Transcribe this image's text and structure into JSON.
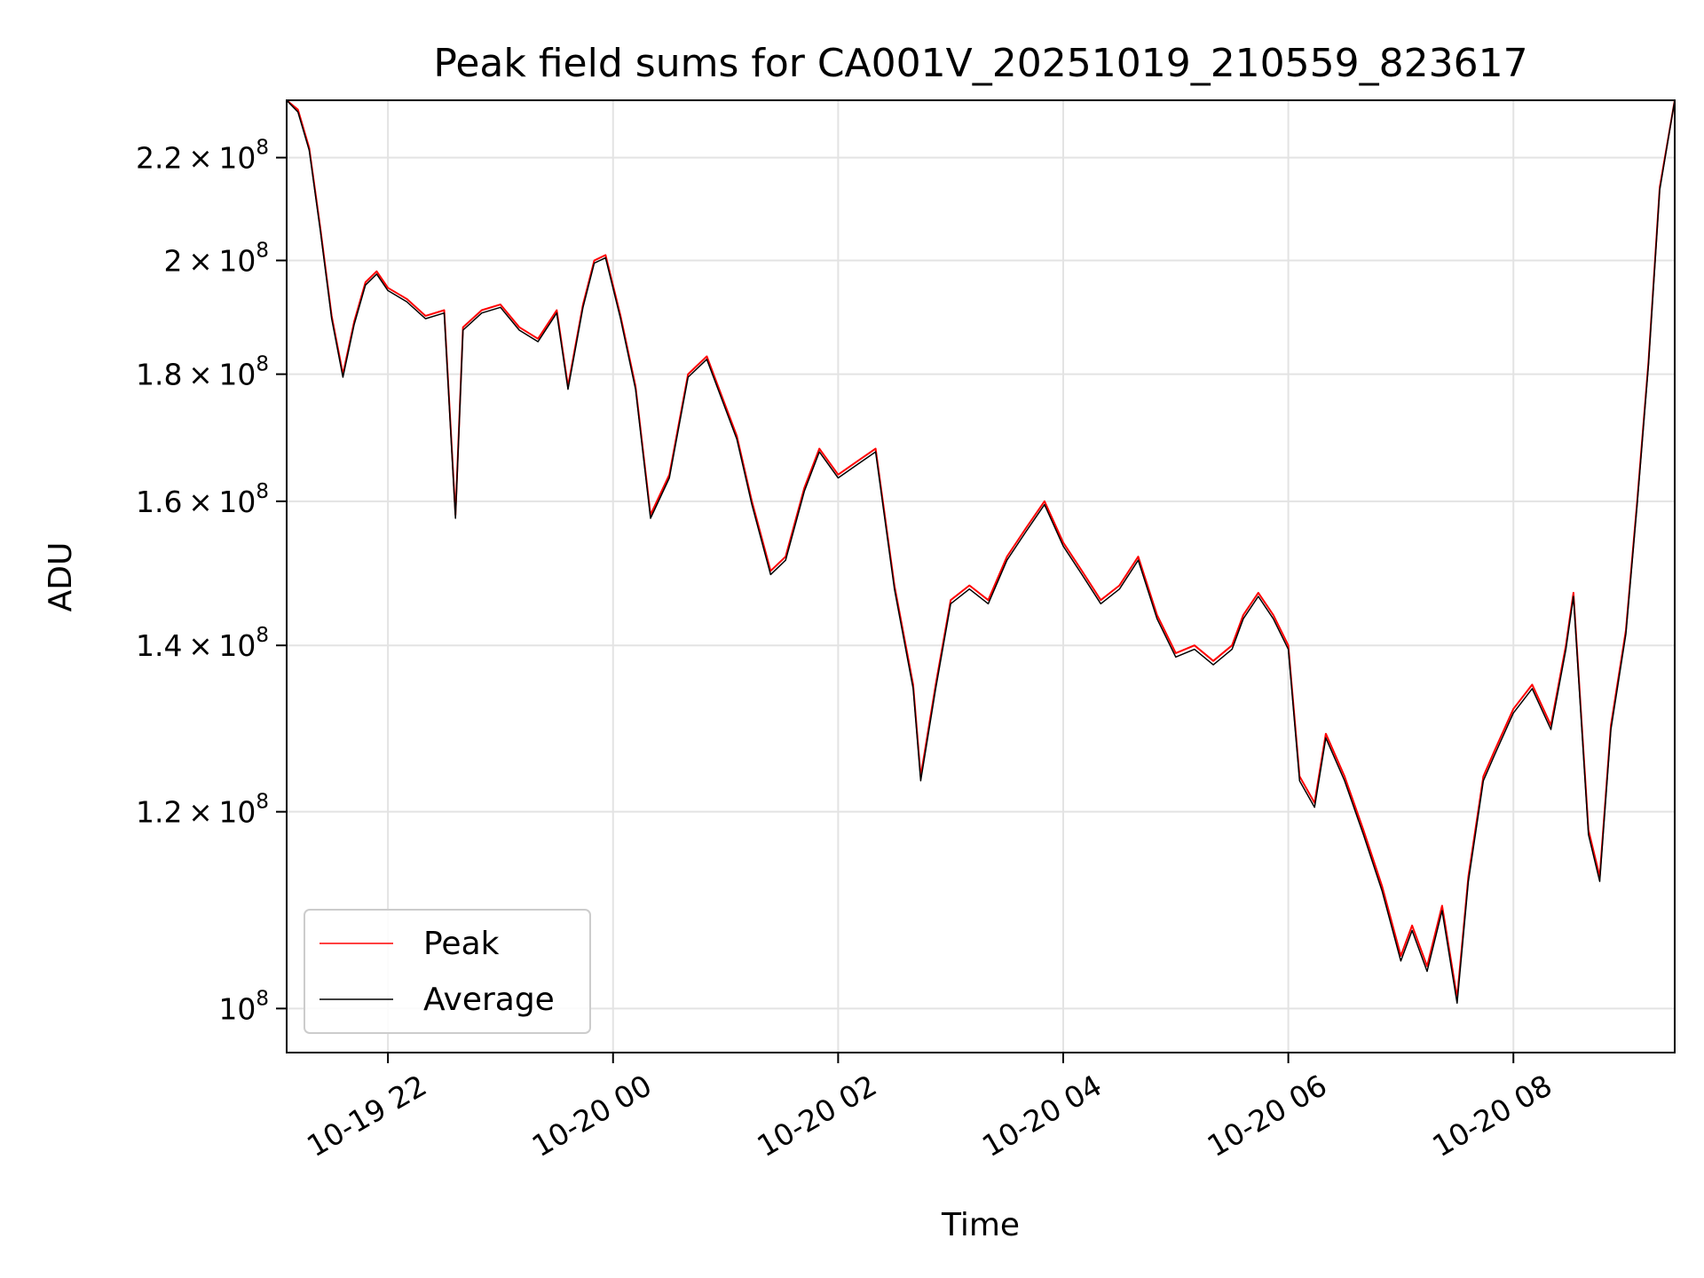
{
  "chart_data": {
    "type": "line",
    "title": "Peak field sums for CA001V_20251019_210559_823617",
    "xlabel": "Time",
    "ylabel": "ADU",
    "x_axis_type": "datetime",
    "y_scale": "log",
    "xlim": [
      "2025-10-19T21:06",
      "2025-10-20T09:26"
    ],
    "ylim": [
      96000000,
      232000000
    ],
    "grid": true,
    "legend_position": "lower-left",
    "x_ticks": [
      {
        "label": "10-19 22",
        "value": "2025-10-19T22:00"
      },
      {
        "label": "10-20 00",
        "value": "2025-10-20T00:00"
      },
      {
        "label": "10-20 02",
        "value": "2025-10-20T02:00"
      },
      {
        "label": "10-20 04",
        "value": "2025-10-20T04:00"
      },
      {
        "label": "10-20 06",
        "value": "2025-10-20T06:00"
      },
      {
        "label": "10-20 08",
        "value": "2025-10-20T08:00"
      }
    ],
    "y_ticks": [
      {
        "mantissa": "2.2",
        "exp": "8",
        "value": 220000000
      },
      {
        "mantissa": "2",
        "exp": "8",
        "value": 200000000
      },
      {
        "mantissa": "1.8",
        "exp": "8",
        "value": 180000000
      },
      {
        "mantissa": "1.6",
        "exp": "8",
        "value": 160000000
      },
      {
        "mantissa": "1.4",
        "exp": "8",
        "value": 140000000
      },
      {
        "mantissa": "1.2",
        "exp": "8",
        "value": 120000000
      },
      {
        "mantissa": "",
        "exp": "8",
        "value": 100000000
      }
    ],
    "series": [
      {
        "name": "Peak",
        "color": "#ff0000",
        "x": [
          "2025-10-19T21:06",
          "2025-10-19T21:12",
          "2025-10-19T21:18",
          "2025-10-19T21:24",
          "2025-10-19T21:30",
          "2025-10-19T21:36",
          "2025-10-19T21:42",
          "2025-10-19T21:48",
          "2025-10-19T21:54",
          "2025-10-19T22:00",
          "2025-10-19T22:10",
          "2025-10-19T22:20",
          "2025-10-19T22:30",
          "2025-10-19T22:36",
          "2025-10-19T22:40",
          "2025-10-19T22:50",
          "2025-10-19T23:00",
          "2025-10-19T23:10",
          "2025-10-19T23:20",
          "2025-10-19T23:30",
          "2025-10-19T23:36",
          "2025-10-19T23:44",
          "2025-10-19T23:50",
          "2025-10-19T23:56",
          "2025-10-20T00:04",
          "2025-10-20T00:12",
          "2025-10-20T00:20",
          "2025-10-20T00:30",
          "2025-10-20T00:40",
          "2025-10-20T00:50",
          "2025-10-20T00:56",
          "2025-10-20T01:06",
          "2025-10-20T01:14",
          "2025-10-20T01:24",
          "2025-10-20T01:32",
          "2025-10-20T01:42",
          "2025-10-20T01:50",
          "2025-10-20T02:00",
          "2025-10-20T02:10",
          "2025-10-20T02:20",
          "2025-10-20T02:30",
          "2025-10-20T02:40",
          "2025-10-20T02:44",
          "2025-10-20T02:52",
          "2025-10-20T03:00",
          "2025-10-20T03:10",
          "2025-10-20T03:20",
          "2025-10-20T03:30",
          "2025-10-20T03:40",
          "2025-10-20T03:50",
          "2025-10-20T04:00",
          "2025-10-20T04:10",
          "2025-10-20T04:20",
          "2025-10-20T04:30",
          "2025-10-20T04:40",
          "2025-10-20T04:50",
          "2025-10-20T05:00",
          "2025-10-20T05:10",
          "2025-10-20T05:20",
          "2025-10-20T05:30",
          "2025-10-20T05:36",
          "2025-10-20T05:44",
          "2025-10-20T05:52",
          "2025-10-20T06:00",
          "2025-10-20T06:06",
          "2025-10-20T06:14",
          "2025-10-20T06:20",
          "2025-10-20T06:30",
          "2025-10-20T06:40",
          "2025-10-20T06:50",
          "2025-10-20T07:00",
          "2025-10-20T07:06",
          "2025-10-20T07:14",
          "2025-10-20T07:22",
          "2025-10-20T07:30",
          "2025-10-20T07:36",
          "2025-10-20T07:44",
          "2025-10-20T07:50",
          "2025-10-20T08:00",
          "2025-10-20T08:10",
          "2025-10-20T08:20",
          "2025-10-20T08:28",
          "2025-10-20T08:32",
          "2025-10-20T08:40",
          "2025-10-20T08:46",
          "2025-10-20T08:52",
          "2025-10-20T09:00",
          "2025-10-20T09:06",
          "2025-10-20T09:12",
          "2025-10-20T09:18",
          "2025-10-20T09:26"
        ],
        "y": [
          232000000,
          230000000,
          222000000,
          206000000,
          190000000,
          180000000,
          189000000,
          196000000,
          198000000,
          195000000,
          193000000,
          190000000,
          191000000,
          158000000,
          188000000,
          191000000,
          192000000,
          188000000,
          186000000,
          191000000,
          178000000,
          192000000,
          200000000,
          201000000,
          190000000,
          178000000,
          158000000,
          164000000,
          180000000,
          183000000,
          178000000,
          170000000,
          160000000,
          150000000,
          152000000,
          162000000,
          168000000,
          164000000,
          166000000,
          168000000,
          148000000,
          135000000,
          124000000,
          135000000,
          146000000,
          148000000,
          146000000,
          152000000,
          156000000,
          160000000,
          154000000,
          150000000,
          146000000,
          148000000,
          152000000,
          144000000,
          139000000,
          140000000,
          138000000,
          140000000,
          144000000,
          147000000,
          144000000,
          140000000,
          124000000,
          121000000,
          129000000,
          124000000,
          118000000,
          112000000,
          105000000,
          108000000,
          104000000,
          110000000,
          101000000,
          113000000,
          124000000,
          127000000,
          132000000,
          135000000,
          130000000,
          140000000,
          147000000,
          118000000,
          113000000,
          130000000,
          142000000,
          160000000,
          182000000,
          214000000,
          232000000
        ]
      },
      {
        "name": "Average",
        "color": "#000000",
        "x": [
          "2025-10-19T21:06",
          "2025-10-19T21:12",
          "2025-10-19T21:18",
          "2025-10-19T21:24",
          "2025-10-19T21:30",
          "2025-10-19T21:36",
          "2025-10-19T21:42",
          "2025-10-19T21:48",
          "2025-10-19T21:54",
          "2025-10-19T22:00",
          "2025-10-19T22:10",
          "2025-10-19T22:20",
          "2025-10-19T22:30",
          "2025-10-19T22:36",
          "2025-10-19T22:40",
          "2025-10-19T22:50",
          "2025-10-19T23:00",
          "2025-10-19T23:10",
          "2025-10-19T23:20",
          "2025-10-19T23:30",
          "2025-10-19T23:36",
          "2025-10-19T23:44",
          "2025-10-19T23:50",
          "2025-10-19T23:56",
          "2025-10-20T00:04",
          "2025-10-20T00:12",
          "2025-10-20T00:20",
          "2025-10-20T00:30",
          "2025-10-20T00:40",
          "2025-10-20T00:50",
          "2025-10-20T00:56",
          "2025-10-20T01:06",
          "2025-10-20T01:14",
          "2025-10-20T01:24",
          "2025-10-20T01:32",
          "2025-10-20T01:42",
          "2025-10-20T01:50",
          "2025-10-20T02:00",
          "2025-10-20T02:10",
          "2025-10-20T02:20",
          "2025-10-20T02:30",
          "2025-10-20T02:40",
          "2025-10-20T02:44",
          "2025-10-20T02:52",
          "2025-10-20T03:00",
          "2025-10-20T03:10",
          "2025-10-20T03:20",
          "2025-10-20T03:30",
          "2025-10-20T03:40",
          "2025-10-20T03:50",
          "2025-10-20T04:00",
          "2025-10-20T04:10",
          "2025-10-20T04:20",
          "2025-10-20T04:30",
          "2025-10-20T04:40",
          "2025-10-20T04:50",
          "2025-10-20T05:00",
          "2025-10-20T05:10",
          "2025-10-20T05:20",
          "2025-10-20T05:30",
          "2025-10-20T05:36",
          "2025-10-20T05:44",
          "2025-10-20T05:52",
          "2025-10-20T06:00",
          "2025-10-20T06:06",
          "2025-10-20T06:14",
          "2025-10-20T06:20",
          "2025-10-20T06:30",
          "2025-10-20T06:40",
          "2025-10-20T06:50",
          "2025-10-20T07:00",
          "2025-10-20T07:06",
          "2025-10-20T07:14",
          "2025-10-20T07:22",
          "2025-10-20T07:30",
          "2025-10-20T07:36",
          "2025-10-20T07:44",
          "2025-10-20T07:50",
          "2025-10-20T08:00",
          "2025-10-20T08:10",
          "2025-10-20T08:20",
          "2025-10-20T08:28",
          "2025-10-20T08:32",
          "2025-10-20T08:40",
          "2025-10-20T08:46",
          "2025-10-20T08:52",
          "2025-10-20T09:00",
          "2025-10-20T09:06",
          "2025-10-20T09:12",
          "2025-10-20T09:18",
          "2025-10-20T09:26"
        ],
        "y": [
          232000000,
          229500000,
          221500000,
          205500000,
          189500000,
          179500000,
          188500000,
          195500000,
          197500000,
          194500000,
          192500000,
          189500000,
          190500000,
          157500000,
          187500000,
          190500000,
          191500000,
          187500000,
          185500000,
          190500000,
          177500000,
          191500000,
          199500000,
          200500000,
          189500000,
          177500000,
          157500000,
          163500000,
          179500000,
          182500000,
          177500000,
          169500000,
          159500000,
          149500000,
          151500000,
          161500000,
          167500000,
          163500000,
          165500000,
          167500000,
          147500000,
          134500000,
          123500000,
          134500000,
          145500000,
          147500000,
          145500000,
          151500000,
          155500000,
          159500000,
          153500000,
          149500000,
          145500000,
          147500000,
          151500000,
          143500000,
          138500000,
          139500000,
          137500000,
          139500000,
          143500000,
          146500000,
          143500000,
          139500000,
          123500000,
          120500000,
          128500000,
          123500000,
          117500000,
          111500000,
          104500000,
          107500000,
          103500000,
          109500000,
          100500000,
          112500000,
          123500000,
          126500000,
          131500000,
          134500000,
          129500000,
          139500000,
          146500000,
          117500000,
          112500000,
          129500000,
          141500000,
          159500000,
          181500000,
          213500000,
          232000000
        ]
      }
    ]
  }
}
